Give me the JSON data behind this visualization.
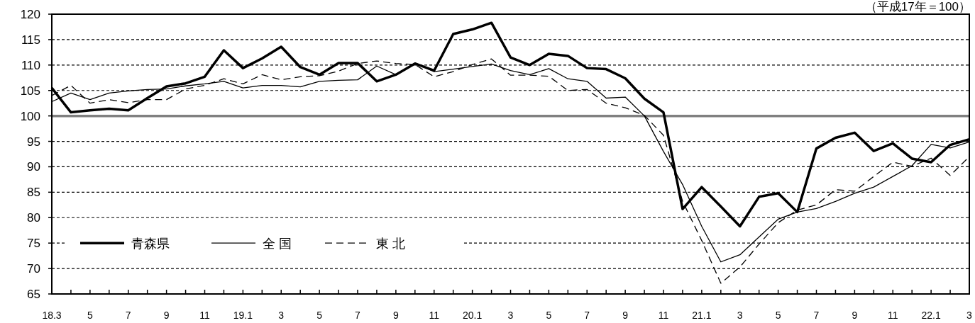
{
  "chart_data": {
    "type": "line",
    "categories": [
      "18.3",
      null,
      "5",
      null,
      "7",
      null,
      "9",
      null,
      "11",
      null,
      "19.1",
      null,
      "3",
      null,
      "5",
      null,
      "7",
      null,
      "9",
      null,
      "11",
      null,
      "20.1",
      null,
      "3",
      null,
      "5",
      null,
      "7",
      null,
      "9",
      null,
      "11",
      null,
      "21.1",
      null,
      "3",
      null,
      "5",
      null,
      "7",
      null,
      "9",
      null,
      "11",
      null,
      "22.1",
      null,
      "3"
    ],
    "series": [
      {
        "name": "青森県",
        "color": "#000000",
        "line_style": "solid",
        "values": [
          105.5,
          100.7,
          101.1,
          101.4,
          101.1,
          103.5,
          105.8,
          106.4,
          107.7,
          112.9,
          109.4,
          111.3,
          113.6,
          109.6,
          108.1,
          110.4,
          110.4,
          106.8,
          108.1,
          110.3,
          108.9,
          116.1,
          117.0,
          118.3,
          111.5,
          110.0,
          112.2,
          111.8,
          109.4,
          109.2,
          107.4,
          103.4,
          100.7,
          81.7,
          86.0,
          82.2,
          78.3,
          84.1,
          84.8,
          81.1,
          93.6,
          95.7,
          96.7,
          93.1,
          94.6,
          91.6,
          90.9,
          94.3,
          95.4
        ]
      },
      {
        "name": "全 国",
        "color": "#000000",
        "line_style": "solid",
        "values": [
          102.8,
          104.5,
          103.2,
          104.5,
          104.9,
          105.2,
          105.3,
          105.9,
          106.3,
          106.8,
          105.5,
          106.0,
          106.0,
          105.7,
          106.8,
          107.0,
          107.1,
          109.8,
          108.1,
          110.4,
          108.7,
          109.2,
          109.7,
          110.2,
          108.9,
          108.1,
          109.3,
          107.3,
          106.8,
          103.5,
          103.7,
          100.0,
          93.0,
          86.5,
          78.3,
          71.3,
          72.7,
          76.2,
          79.7,
          81.1,
          81.8,
          83.2,
          84.8,
          86.0,
          88.1,
          90.2,
          94.4,
          93.7,
          94.9
        ]
      },
      {
        "name": "東 北",
        "color": "#000000",
        "line_style": "dashed",
        "values": [
          104.0,
          106.0,
          102.5,
          103.2,
          102.6,
          103.2,
          103.2,
          105.3,
          106.0,
          107.3,
          106.3,
          108.1,
          107.1,
          107.7,
          107.9,
          108.8,
          110.3,
          110.8,
          110.3,
          110.1,
          107.7,
          108.7,
          110.1,
          111.2,
          108.0,
          108.0,
          107.8,
          105.0,
          105.2,
          102.5,
          101.6,
          100.1,
          96.2,
          83.2,
          75.5,
          67.1,
          70.3,
          74.8,
          79.0,
          81.5,
          82.5,
          85.5,
          85.2,
          88.1,
          90.9,
          90.1,
          91.7,
          88.3,
          92.0
        ]
      }
    ],
    "ylim": [
      65,
      120
    ],
    "yticks": [
      65,
      70,
      75,
      80,
      85,
      90,
      95,
      100,
      105,
      110,
      115,
      120
    ],
    "ref_lines": [
      {
        "axis": "y",
        "value": 100,
        "color": "#808080"
      }
    ],
    "annotations": [
      "（平成17年＝100）"
    ],
    "grid": "y",
    "legend": "bottom left",
    "marker": "none"
  }
}
